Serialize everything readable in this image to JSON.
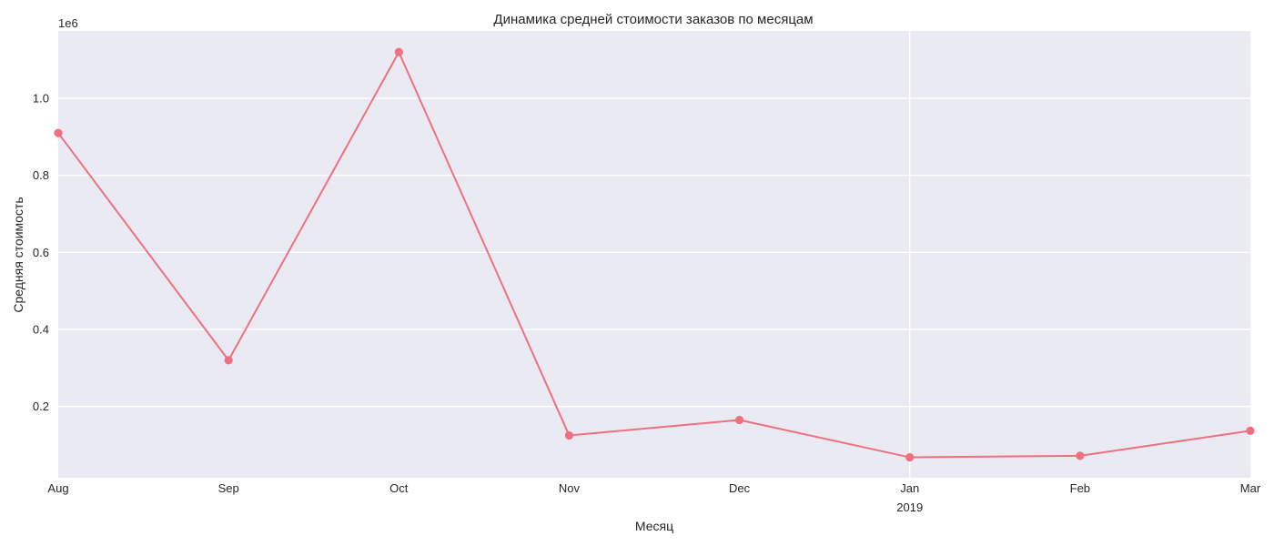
{
  "chart_data": {
    "type": "line",
    "title": "Динамика средней стоимости заказов по месяцам",
    "xlabel": "Месяц",
    "ylabel": "Средняя стоимость",
    "y_offset_label": "1e6",
    "y_multiplier": 1000000,
    "x": [
      "Aug",
      "Sep",
      "Oct",
      "Nov",
      "Dec",
      "Jan",
      "Feb",
      "Mar"
    ],
    "x_sublabels": [
      "",
      "",
      "",
      "",
      "",
      "2019",
      "",
      ""
    ],
    "series": [
      {
        "values": [
          910000,
          320000,
          1120000,
          125000,
          165000,
          68000,
          72000,
          137000
        ]
      }
    ],
    "yticks": [
      0.2,
      0.4,
      0.6,
      0.8,
      1.0
    ],
    "ytick_labels": [
      "0.2",
      "0.4",
      "0.6",
      "0.8",
      "1.0"
    ],
    "ylim": [
      15000,
      1175000
    ],
    "grid": true,
    "highlight_vertical_gridline": "Jan",
    "colors": {
      "line": "#f0707f",
      "background": "#eaeaf2",
      "grid": "#ffffff",
      "text": "#262626"
    }
  }
}
